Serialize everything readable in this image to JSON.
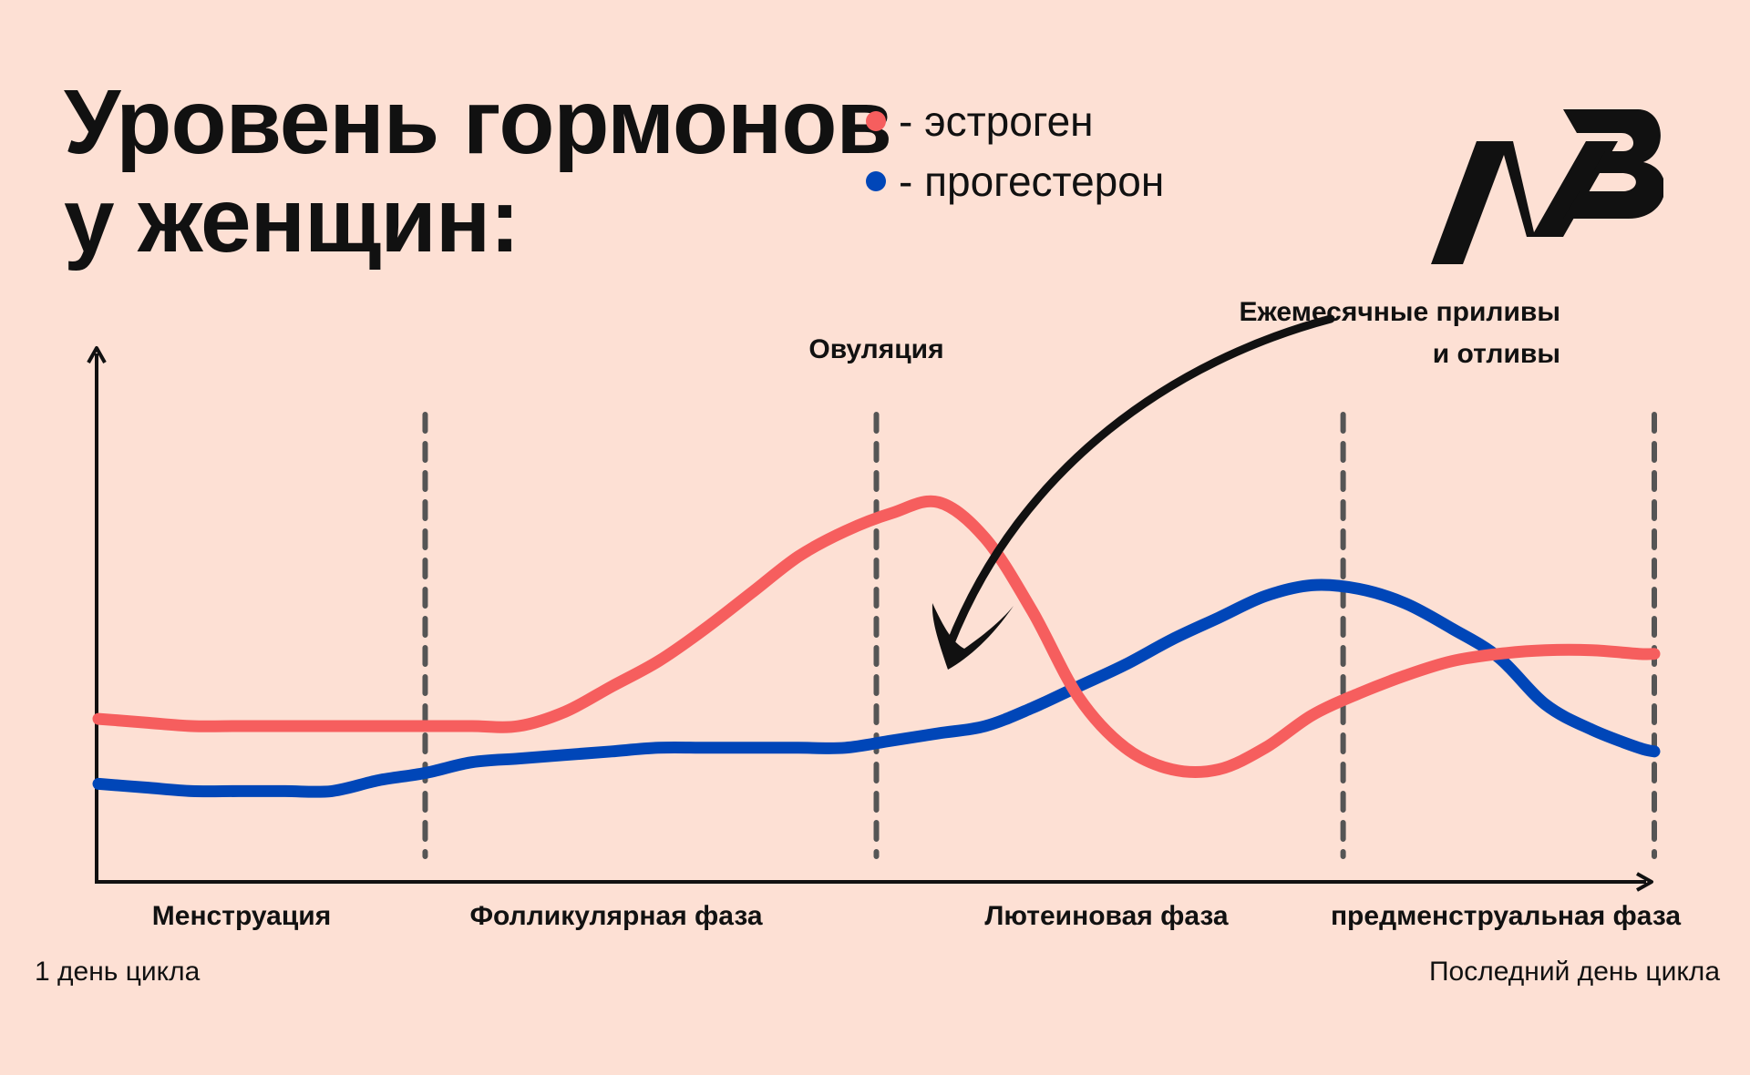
{
  "title_line1": "Уровень гормонов",
  "title_line2": "у женщин:",
  "legend": [
    {
      "label": "- эстроген",
      "color": "#f65e5e"
    },
    {
      "label": "- прогестерон",
      "color": "#0046b8"
    }
  ],
  "logo_icon": "nb-logo-icon",
  "annotation_line1": "Ежемесячные приливы",
  "annotation_line2": "и отливы",
  "cycle_start": "1 день цикла",
  "cycle_end": "Последний день цикла",
  "chart_data": {
    "type": "line",
    "x": [
      0,
      3,
      6,
      9,
      12,
      15,
      18,
      21,
      24,
      27,
      30,
      33,
      36,
      39,
      42,
      45,
      48,
      51,
      54,
      57,
      60,
      63,
      66,
      69,
      72,
      75,
      78,
      81,
      84,
      87,
      90,
      93,
      96,
      99,
      100
    ],
    "series": [
      {
        "name": "- эстроген",
        "color": "#f65e5e",
        "values": [
          20,
          19,
          18,
          18,
          18,
          18,
          18,
          18,
          18,
          18,
          22,
          29,
          36,
          45,
          55,
          65,
          72,
          77,
          80,
          70,
          50,
          26,
          12,
          6,
          6,
          12,
          21,
          27,
          32,
          36,
          38,
          39,
          39,
          38,
          38
        ]
      },
      {
        "name": "- прогестерон",
        "color": "#0046b8",
        "values": [
          2,
          1,
          0,
          0,
          0,
          0,
          3,
          5,
          8,
          9,
          10,
          11,
          12,
          12,
          12,
          12,
          12,
          14,
          16,
          18,
          23,
          29,
          35,
          42,
          48,
          54,
          57,
          56,
          52,
          45,
          37,
          24,
          17,
          12,
          11
        ]
      }
    ],
    "phases": [
      "Менструация",
      "Фолликулярная фаза",
      "Лютеиновая фаза",
      "предменструальная фаза"
    ],
    "phase_boundaries": [
      21,
      50,
      80,
      100
    ],
    "ovulation_label": "Овуляция",
    "ovulation_x": 50,
    "xlim": [
      0,
      100
    ],
    "ylim": [
      -10,
      100
    ],
    "grid": false,
    "legend_position": "top"
  }
}
